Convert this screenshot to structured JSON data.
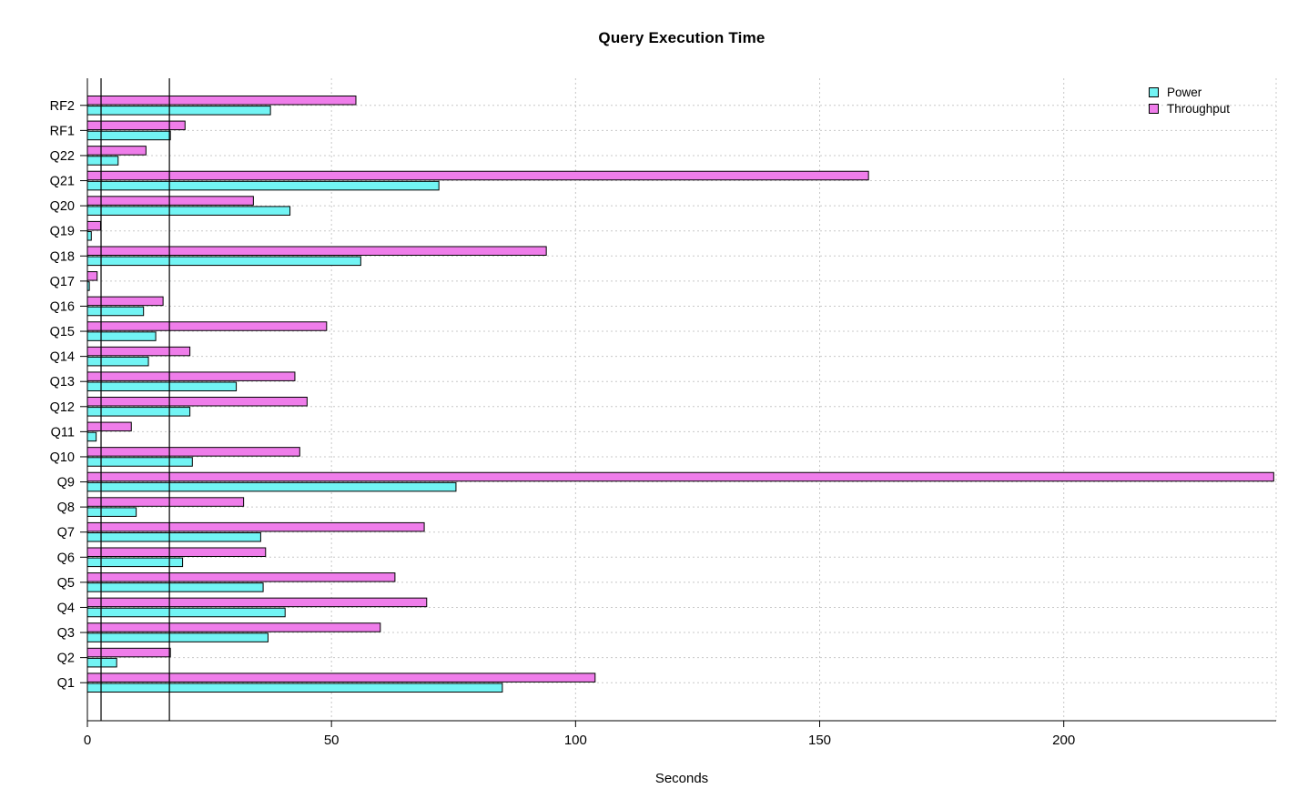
{
  "chart_data": {
    "type": "bar",
    "orientation": "horizontal",
    "title": "Query Execution Time",
    "xlabel": "Seconds",
    "categories_top_to_bottom": [
      "RF2",
      "RF1",
      "Q22",
      "Q21",
      "Q20",
      "Q19",
      "Q18",
      "Q17",
      "Q16",
      "Q15",
      "Q14",
      "Q13",
      "Q12",
      "Q11",
      "Q10",
      "Q9",
      "Q8",
      "Q7",
      "Q6",
      "Q5",
      "Q4",
      "Q3",
      "Q2",
      "Q1"
    ],
    "series": [
      {
        "name": "Power",
        "color": "#72F4F4",
        "values": [
          37.5,
          17,
          6.3,
          72,
          41.5,
          0.8,
          56,
          0.4,
          11.5,
          14,
          12.5,
          30.5,
          21,
          1.8,
          21.5,
          75.5,
          10,
          35.5,
          19.5,
          36,
          40.5,
          37,
          6,
          85
        ]
      },
      {
        "name": "Throughput",
        "color": "#EF7DEA",
        "values": [
          55,
          20,
          12,
          160,
          34,
          2.7,
          94,
          2,
          15.5,
          49,
          21,
          42.5,
          45,
          9,
          43.5,
          243,
          32,
          69,
          36.5,
          63,
          69.5,
          60,
          17,
          104
        ]
      }
    ],
    "x_ticks": [
      0,
      50,
      100,
      150,
      200
    ],
    "xlim": [
      0,
      243.5
    ],
    "reference_lines_x": [
      2.8,
      16.8
    ],
    "legend_position": "top-right",
    "grid": "dotted",
    "bar_outline_color": "#000000",
    "grid_color": "#c8c8c8"
  }
}
